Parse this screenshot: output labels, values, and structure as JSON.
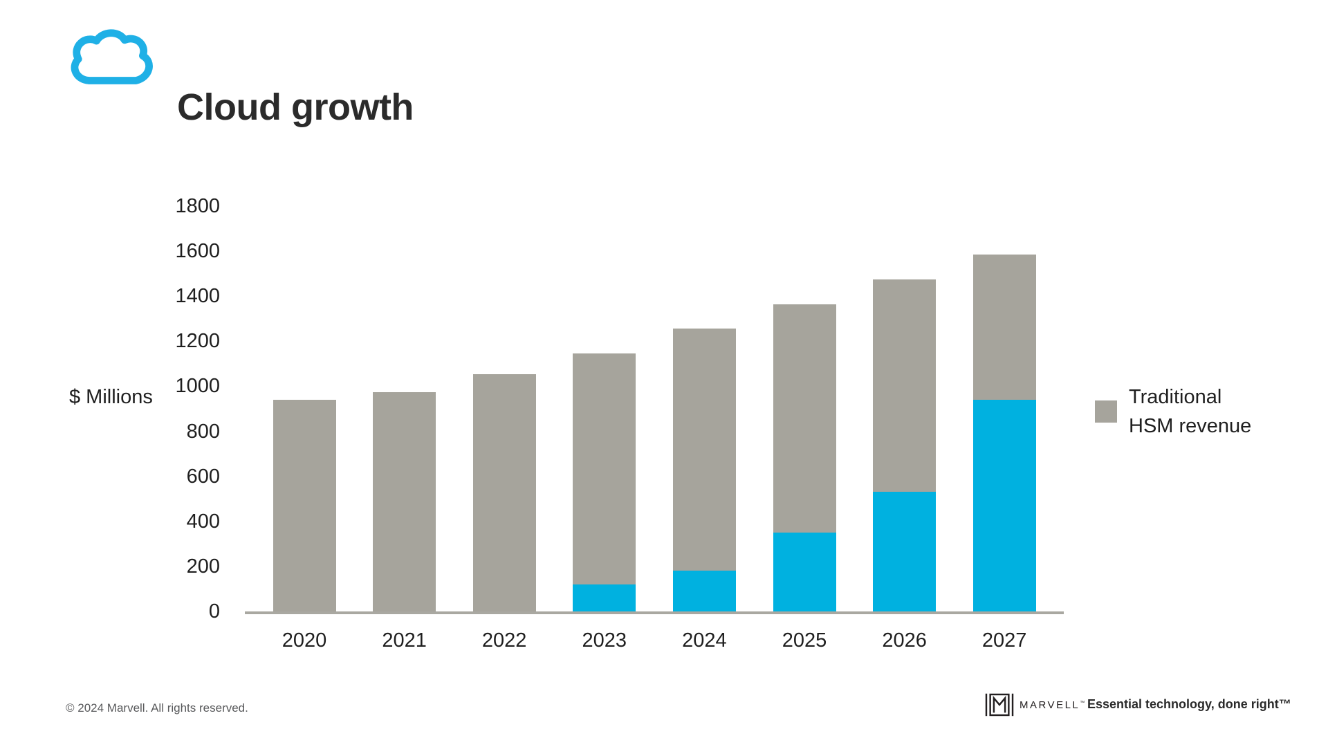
{
  "header": {
    "title": "Cloud growth"
  },
  "chart_data": {
    "type": "bar",
    "stacked": true,
    "title": "Cloud growth",
    "categories": [
      "2020",
      "2021",
      "2022",
      "2023",
      "2024",
      "2025",
      "2026",
      "2027"
    ],
    "series": [
      {
        "id": "cloud",
        "legend_label": null,
        "color": "#00b1e0",
        "values": [
          0,
          0,
          0,
          120,
          180,
          350,
          530,
          940
        ]
      },
      {
        "id": "traditional-hsm",
        "legend_label": "Traditional HSM revenue",
        "color": "#a6a49c",
        "values": [
          940,
          975,
          1055,
          1025,
          1075,
          1015,
          945,
          645
        ]
      }
    ],
    "stack_totals": [
      940,
      975,
      1055,
      1145,
      1255,
      1365,
      1475,
      1585
    ],
    "ylabel": "$ Millions",
    "xlabel": "",
    "ylim": [
      0,
      1800
    ],
    "yticks": [
      0,
      200,
      400,
      600,
      800,
      1000,
      1200,
      1400,
      1600,
      1800
    ],
    "grid": false,
    "legend_position": "right-middle"
  },
  "legend": {
    "items": [
      {
        "label_line1": "Traditional",
        "label_line2": "HSM revenue",
        "color": "#a6a49c"
      }
    ]
  },
  "footer": {
    "copyright": "© 2024 Marvell. All rights reserved.",
    "wordmark": "MARVELL",
    "wordmark_tm": "™",
    "tagline": "Essential technology, done right™"
  },
  "colors": {
    "accent_blue": "#00b1e0",
    "icon_blue": "#1fb0e6",
    "bar_gray": "#a6a49c",
    "axis_line": "#a9a8a1",
    "text_dark": "#1f1f1f",
    "footer_gray": "#58595b"
  }
}
